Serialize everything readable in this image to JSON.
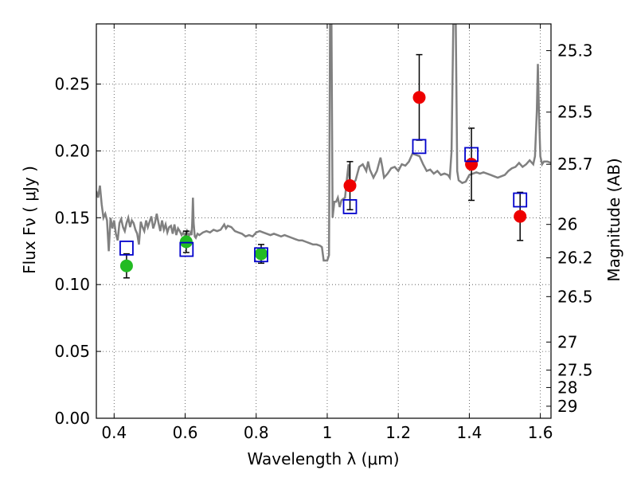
{
  "chart_data": {
    "type": "scatter",
    "xlabel": "Wavelength  λ (μm)",
    "ylabel": "Flux  Fν  ( μJy )",
    "ylabel_right": "Magnitude (AB)",
    "xlim": [
      0.35,
      1.63
    ],
    "ylim": [
      0.0,
      0.295
    ],
    "grid": true,
    "x_ticks": [
      0.4,
      0.6,
      0.8,
      1.0,
      1.2,
      1.4,
      1.6
    ],
    "x_tick_labels": [
      "0.4",
      "0.6",
      "0.8",
      "1",
      "1.2",
      "1.4",
      "1.6"
    ],
    "y_ticks": [
      0.0,
      0.05,
      0.1,
      0.15,
      0.2,
      0.25
    ],
    "y_tick_labels": [
      "0.00",
      "0.05",
      "0.10",
      "0.15",
      "0.20",
      "0.25"
    ],
    "right_ticks": [
      {
        "flux": 0.275,
        "label": "25.3"
      },
      {
        "flux": 0.229,
        "label": "25.5"
      },
      {
        "flux": 0.19,
        "label": "25.7"
      },
      {
        "flux": 0.145,
        "label": "26"
      },
      {
        "flux": 0.12,
        "label": "26.2"
      },
      {
        "flux": 0.091,
        "label": "26.5"
      },
      {
        "flux": 0.057,
        "label": "27"
      },
      {
        "flux": 0.036,
        "label": "27.5"
      },
      {
        "flux": 0.023,
        "label": "28"
      },
      {
        "flux": 0.009,
        "label": "29"
      }
    ],
    "model_spectrum": {
      "color": "#808080",
      "points": [
        [
          0.35,
          0.17
        ],
        [
          0.355,
          0.165
        ],
        [
          0.36,
          0.174
        ],
        [
          0.365,
          0.16
        ],
        [
          0.37,
          0.15
        ],
        [
          0.375,
          0.153
        ],
        [
          0.38,
          0.148
        ],
        [
          0.385,
          0.125
        ],
        [
          0.39,
          0.15
        ],
        [
          0.395,
          0.142
        ],
        [
          0.4,
          0.148
        ],
        [
          0.405,
          0.138
        ],
        [
          0.41,
          0.133
        ],
        [
          0.415,
          0.146
        ],
        [
          0.42,
          0.149
        ],
        [
          0.425,
          0.143
        ],
        [
          0.43,
          0.14
        ],
        [
          0.435,
          0.146
        ],
        [
          0.44,
          0.15
        ],
        [
          0.445,
          0.143
        ],
        [
          0.45,
          0.148
        ],
        [
          0.455,
          0.146
        ],
        [
          0.46,
          0.141
        ],
        [
          0.465,
          0.138
        ],
        [
          0.47,
          0.13
        ],
        [
          0.475,
          0.147
        ],
        [
          0.48,
          0.143
        ],
        [
          0.485,
          0.14
        ],
        [
          0.49,
          0.148
        ],
        [
          0.495,
          0.143
        ],
        [
          0.5,
          0.147
        ],
        [
          0.505,
          0.151
        ],
        [
          0.51,
          0.142
        ],
        [
          0.515,
          0.146
        ],
        [
          0.52,
          0.153
        ],
        [
          0.525,
          0.146
        ],
        [
          0.53,
          0.14
        ],
        [
          0.535,
          0.148
        ],
        [
          0.54,
          0.141
        ],
        [
          0.545,
          0.145
        ],
        [
          0.55,
          0.139
        ],
        [
          0.555,
          0.143
        ],
        [
          0.56,
          0.144
        ],
        [
          0.565,
          0.138
        ],
        [
          0.57,
          0.145
        ],
        [
          0.575,
          0.137
        ],
        [
          0.58,
          0.142
        ],
        [
          0.585,
          0.14
        ],
        [
          0.59,
          0.137
        ],
        [
          0.595,
          0.139
        ],
        [
          0.6,
          0.136
        ],
        [
          0.605,
          0.14
        ],
        [
          0.61,
          0.136
        ],
        [
          0.615,
          0.139
        ],
        [
          0.618,
          0.137
        ],
        [
          0.62,
          0.146
        ],
        [
          0.622,
          0.165
        ],
        [
          0.624,
          0.146
        ],
        [
          0.627,
          0.136
        ],
        [
          0.63,
          0.135
        ],
        [
          0.635,
          0.138
        ],
        [
          0.64,
          0.137
        ],
        [
          0.65,
          0.139
        ],
        [
          0.66,
          0.14
        ],
        [
          0.67,
          0.139
        ],
        [
          0.68,
          0.141
        ],
        [
          0.69,
          0.14
        ],
        [
          0.7,
          0.141
        ],
        [
          0.71,
          0.145
        ],
        [
          0.715,
          0.142
        ],
        [
          0.72,
          0.144
        ],
        [
          0.73,
          0.143
        ],
        [
          0.74,
          0.14
        ],
        [
          0.75,
          0.139
        ],
        [
          0.76,
          0.138
        ],
        [
          0.77,
          0.136
        ],
        [
          0.78,
          0.137
        ],
        [
          0.79,
          0.136
        ],
        [
          0.8,
          0.139
        ],
        [
          0.81,
          0.14
        ],
        [
          0.82,
          0.139
        ],
        [
          0.83,
          0.138
        ],
        [
          0.84,
          0.137
        ],
        [
          0.85,
          0.138
        ],
        [
          0.86,
          0.137
        ],
        [
          0.87,
          0.136
        ],
        [
          0.88,
          0.137
        ],
        [
          0.89,
          0.136
        ],
        [
          0.9,
          0.135
        ],
        [
          0.91,
          0.134
        ],
        [
          0.92,
          0.133
        ],
        [
          0.93,
          0.133
        ],
        [
          0.94,
          0.132
        ],
        [
          0.95,
          0.131
        ],
        [
          0.96,
          0.13
        ],
        [
          0.97,
          0.13
        ],
        [
          0.98,
          0.129
        ],
        [
          0.985,
          0.128
        ],
        [
          0.99,
          0.118
        ],
        [
          1.0,
          0.118
        ],
        [
          1.005,
          0.122
        ],
        [
          1.008,
          0.295
        ],
        [
          1.012,
          0.295
        ],
        [
          1.015,
          0.15
        ],
        [
          1.02,
          0.162
        ],
        [
          1.025,
          0.162
        ],
        [
          1.03,
          0.165
        ],
        [
          1.035,
          0.158
        ],
        [
          1.04,
          0.163
        ],
        [
          1.045,
          0.164
        ],
        [
          1.05,
          0.165
        ],
        [
          1.055,
          0.178
        ],
        [
          1.06,
          0.19
        ],
        [
          1.065,
          0.17
        ],
        [
          1.07,
          0.175
        ],
        [
          1.08,
          0.178
        ],
        [
          1.09,
          0.188
        ],
        [
          1.1,
          0.19
        ],
        [
          1.11,
          0.185
        ],
        [
          1.115,
          0.192
        ],
        [
          1.12,
          0.186
        ],
        [
          1.13,
          0.18
        ],
        [
          1.14,
          0.185
        ],
        [
          1.15,
          0.195
        ],
        [
          1.155,
          0.188
        ],
        [
          1.16,
          0.18
        ],
        [
          1.17,
          0.183
        ],
        [
          1.18,
          0.187
        ],
        [
          1.19,
          0.188
        ],
        [
          1.2,
          0.185
        ],
        [
          1.21,
          0.19
        ],
        [
          1.22,
          0.189
        ],
        [
          1.23,
          0.192
        ],
        [
          1.24,
          0.198
        ],
        [
          1.25,
          0.197
        ],
        [
          1.26,
          0.196
        ],
        [
          1.27,
          0.19
        ],
        [
          1.28,
          0.185
        ],
        [
          1.29,
          0.186
        ],
        [
          1.3,
          0.183
        ],
        [
          1.31,
          0.185
        ],
        [
          1.32,
          0.182
        ],
        [
          1.33,
          0.183
        ],
        [
          1.34,
          0.182
        ],
        [
          1.345,
          0.18
        ],
        [
          1.35,
          0.2
        ],
        [
          1.355,
          0.295
        ],
        [
          1.362,
          0.295
        ],
        [
          1.366,
          0.185
        ],
        [
          1.37,
          0.178
        ],
        [
          1.38,
          0.176
        ],
        [
          1.39,
          0.177
        ],
        [
          1.4,
          0.182
        ],
        [
          1.41,
          0.183
        ],
        [
          1.42,
          0.184
        ],
        [
          1.43,
          0.183
        ],
        [
          1.44,
          0.184
        ],
        [
          1.45,
          0.183
        ],
        [
          1.46,
          0.182
        ],
        [
          1.47,
          0.181
        ],
        [
          1.48,
          0.18
        ],
        [
          1.49,
          0.181
        ],
        [
          1.5,
          0.182
        ],
        [
          1.51,
          0.185
        ],
        [
          1.52,
          0.187
        ],
        [
          1.53,
          0.188
        ],
        [
          1.54,
          0.191
        ],
        [
          1.55,
          0.188
        ],
        [
          1.56,
          0.19
        ],
        [
          1.57,
          0.193
        ],
        [
          1.58,
          0.19
        ],
        [
          1.585,
          0.196
        ],
        [
          1.59,
          0.23
        ],
        [
          1.593,
          0.265
        ],
        [
          1.596,
          0.23
        ],
        [
          1.6,
          0.196
        ],
        [
          1.605,
          0.19
        ],
        [
          1.61,
          0.192
        ],
        [
          1.62,
          0.192
        ],
        [
          1.63,
          0.191
        ]
      ]
    },
    "series": [
      {
        "marker": "circle",
        "color": "#22bb22",
        "points": [
          {
            "x": 0.435,
            "y": 0.114,
            "err": 0.009
          },
          {
            "x": 0.603,
            "y": 0.132,
            "err": 0.008
          },
          {
            "x": 0.814,
            "y": 0.123,
            "err": 0.007
          }
        ]
      },
      {
        "marker": "circle",
        "color": "#ee0000",
        "points": [
          {
            "x": 1.064,
            "y": 0.174,
            "err": 0.018
          },
          {
            "x": 1.259,
            "y": 0.24,
            "err": 0.032
          },
          {
            "x": 1.406,
            "y": 0.19,
            "err": 0.027
          },
          {
            "x": 1.543,
            "y": 0.151,
            "err": 0.018
          }
        ]
      },
      {
        "marker": "open-square",
        "color": "#0000cc",
        "points": [
          {
            "x": 0.435,
            "y": 0.127
          },
          {
            "x": 0.604,
            "y": 0.126
          },
          {
            "x": 0.814,
            "y": 0.122
          },
          {
            "x": 1.064,
            "y": 0.158
          },
          {
            "x": 1.259,
            "y": 0.203
          },
          {
            "x": 1.406,
            "y": 0.197
          },
          {
            "x": 1.543,
            "y": 0.163
          }
        ]
      }
    ]
  }
}
